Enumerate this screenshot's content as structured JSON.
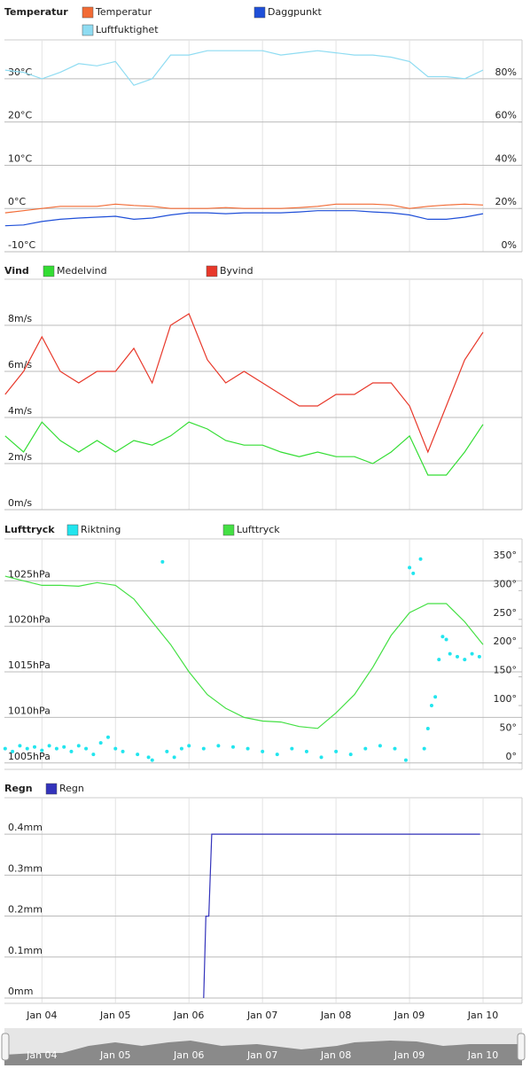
{
  "chart_data": [
    {
      "type": "line",
      "title": "Temperatur",
      "x": [
        3.5,
        3.75,
        4,
        4.25,
        4.5,
        4.75,
        5,
        5.25,
        5.5,
        5.75,
        6,
        6.25,
        6.5,
        6.75,
        7,
        7.25,
        7.5,
        7.75,
        8,
        8.25,
        8.5,
        8.75,
        9,
        9.25,
        9.5,
        9.75,
        10
      ],
      "series": [
        {
          "name": "Temperatur",
          "color": "#f26b35",
          "values": [
            -1,
            -0.5,
            0,
            0.5,
            0.5,
            0.5,
            1,
            0.7,
            0.5,
            0,
            0,
            0,
            0.2,
            0,
            0,
            0,
            0.2,
            0.5,
            1,
            1,
            1,
            0.8,
            0,
            0.5,
            0.8,
            1,
            0.8
          ]
        },
        {
          "name": "Daggpunkt",
          "color": "#1f4fd8",
          "values": [
            -4,
            -3.8,
            -3,
            -2.5,
            -2.2,
            -2,
            -1.8,
            -2.5,
            -2.2,
            -1.5,
            -1,
            -1,
            -1.2,
            -1,
            -1,
            -1,
            -0.8,
            -0.5,
            -0.5,
            -0.5,
            -0.8,
            -1,
            -1.5,
            -2.5,
            -2.5,
            -2,
            -1.2
          ]
        },
        {
          "name": "Luftfuktighet",
          "color": "#8fdcf2",
          "axis": "y2",
          "values": [
            84,
            83,
            80,
            83,
            87,
            86,
            88,
            77,
            80,
            91,
            91,
            93,
            93,
            93,
            93,
            91,
            92,
            93,
            92,
            91,
            91,
            90,
            88,
            81,
            81,
            80,
            84
          ]
        }
      ],
      "ylim": [
        -10,
        39
      ],
      "yticks": [
        {
          "value": -10,
          "label": "-10°C"
        },
        {
          "value": 0,
          "label": "0°C"
        },
        {
          "value": 10,
          "label": "10°C"
        },
        {
          "value": 20,
          "label": "20°C"
        },
        {
          "value": 30,
          "label": "30°C"
        }
      ],
      "y2lim": [
        0,
        98
      ],
      "y2ticks": [
        {
          "value": 0,
          "label": "0%"
        },
        {
          "value": 20,
          "label": "20%"
        },
        {
          "value": 40,
          "label": "40%"
        },
        {
          "value": 60,
          "label": "60%"
        },
        {
          "value": 80,
          "label": "80%"
        }
      ],
      "grid": true
    },
    {
      "type": "line",
      "title": "Vind",
      "x": [
        3.5,
        3.75,
        4,
        4.25,
        4.5,
        4.75,
        5,
        5.25,
        5.5,
        5.75,
        6,
        6.25,
        6.5,
        6.75,
        7,
        7.25,
        7.5,
        7.75,
        8,
        8.25,
        8.5,
        8.75,
        9,
        9.25,
        9.5,
        9.75,
        10
      ],
      "series": [
        {
          "name": "Medelvind",
          "color": "#33dd33",
          "values": [
            3.2,
            2.5,
            3.8,
            3,
            2.5,
            3,
            2.5,
            3,
            2.8,
            3.2,
            3.8,
            3.5,
            3,
            2.8,
            2.8,
            2.5,
            2.3,
            2.5,
            2.3,
            2.3,
            2,
            2.5,
            3.2,
            1.5,
            1.5,
            2.5,
            3.7
          ]
        },
        {
          "name": "Byvind",
          "color": "#e8382a",
          "values": [
            5,
            6,
            7.5,
            6,
            5.5,
            6,
            6,
            7,
            5.5,
            8,
            8.5,
            6.5,
            5.5,
            6,
            5.5,
            5,
            4.5,
            4.5,
            5,
            5,
            5.5,
            5.5,
            4.5,
            2.5,
            4.5,
            6.5,
            7.7
          ]
        }
      ],
      "ylim": [
        0,
        10
      ],
      "yticks": [
        {
          "value": 0,
          "label": "0m/s"
        },
        {
          "value": 2,
          "label": "2m/s"
        },
        {
          "value": 4,
          "label": "4m/s"
        },
        {
          "value": 6,
          "label": "6m/s"
        },
        {
          "value": 8,
          "label": "8m/s"
        }
      ],
      "grid": true
    },
    {
      "type": "line",
      "title": "Lufttryck",
      "x": [
        3.5,
        3.75,
        4,
        4.25,
        4.5,
        4.75,
        5,
        5.25,
        5.5,
        5.75,
        6,
        6.25,
        6.5,
        6.75,
        7,
        7.25,
        7.5,
        7.75,
        8,
        8.25,
        8.5,
        8.75,
        9,
        9.25,
        9.5,
        9.75,
        10
      ],
      "series": [
        {
          "name": "Riktning",
          "color": "#22e5ee",
          "type": "scatter",
          "axis": "y2",
          "x": [
            3.5,
            3.6,
            3.7,
            3.8,
            3.9,
            4,
            4.1,
            4.2,
            4.3,
            4.4,
            4.5,
            4.6,
            4.7,
            4.8,
            4.9,
            5,
            5.1,
            5.3,
            5.45,
            5.5,
            5.64,
            5.7,
            5.8,
            5.9,
            6,
            6.2,
            6.4,
            6.6,
            6.8,
            7,
            7.2,
            7.4,
            7.6,
            7.8,
            8,
            8.2,
            8.4,
            8.6,
            8.8,
            8.95,
            9,
            9.05,
            9.15,
            9.2,
            9.25,
            9.3,
            9.35,
            9.4,
            9.45,
            9.5,
            9.55,
            9.65,
            9.75,
            9.85,
            9.95
          ],
          "values": [
            25,
            20,
            30,
            25,
            28,
            22,
            30,
            25,
            28,
            20,
            30,
            25,
            15,
            35,
            45,
            25,
            20,
            15,
            10,
            5,
            350,
            20,
            10,
            25,
            30,
            25,
            30,
            28,
            25,
            20,
            15,
            25,
            20,
            10,
            20,
            15,
            25,
            30,
            25,
            5,
            340,
            330,
            355,
            25,
            60,
            100,
            115,
            180,
            220,
            215,
            190,
            185,
            180,
            190,
            185
          ]
        },
        {
          "name": "Lufttryck",
          "color": "#44e044",
          "values": [
            1025.5,
            1025,
            1024.5,
            1024.5,
            1024.4,
            1024.8,
            1024.5,
            1023,
            1020.5,
            1018,
            1015,
            1012.5,
            1011,
            1010,
            1009.6,
            1009.5,
            1009,
            1008.8,
            1010.5,
            1012.5,
            1015.5,
            1019,
            1021.5,
            1022.5,
            1022.5,
            1020.5,
            1018
          ]
        }
      ],
      "ylim": [
        1004.3,
        1029.6
      ],
      "yticks": [
        {
          "value": 1005,
          "label": "1005hPa"
        },
        {
          "value": 1010,
          "label": "1010hPa"
        },
        {
          "value": 1015,
          "label": "1015hPa"
        },
        {
          "value": 1020,
          "label": "1020hPa"
        },
        {
          "value": 1025,
          "label": "1025hPa"
        }
      ],
      "y2lim": [
        -11,
        390
      ],
      "y2ticks": [
        {
          "value": 0,
          "label": "0°"
        },
        {
          "value": 50,
          "label": "50°"
        },
        {
          "value": 100,
          "label": "100°"
        },
        {
          "value": 150,
          "label": "150°"
        },
        {
          "value": 200,
          "label": "200°"
        },
        {
          "value": 250,
          "label": "250°"
        },
        {
          "value": 300,
          "label": "300°"
        },
        {
          "value": 350,
          "label": "350°"
        }
      ],
      "grid": true
    },
    {
      "type": "line",
      "title": "Regn",
      "x": [
        6.2,
        6.23,
        6.27,
        6.31,
        9.96
      ],
      "series": [
        {
          "name": "Regn",
          "color": "#3333bb",
          "values": [
            0,
            0.2,
            0.2,
            0.4,
            0.4
          ]
        }
      ],
      "ylim": [
        -0.013,
        0.489
      ],
      "yticks": [
        {
          "value": 0,
          "label": "0mm"
        },
        {
          "value": 0.1,
          "label": "0.1mm"
        },
        {
          "value": 0.2,
          "label": "0.2mm"
        },
        {
          "value": 0.3,
          "label": "0.3mm"
        },
        {
          "value": 0.4,
          "label": "0.4mm"
        }
      ],
      "xlim": [
        3.49,
        10.53
      ],
      "xticks": [
        {
          "value": 4,
          "label": "Jan 04"
        },
        {
          "value": 5,
          "label": "Jan 05"
        },
        {
          "value": 6,
          "label": "Jan 06"
        },
        {
          "value": 7,
          "label": "Jan 07"
        },
        {
          "value": 8,
          "label": "Jan 08"
        },
        {
          "value": 9,
          "label": "Jan 09"
        },
        {
          "value": 10,
          "label": "Jan 10"
        }
      ],
      "grid": true
    }
  ]
}
